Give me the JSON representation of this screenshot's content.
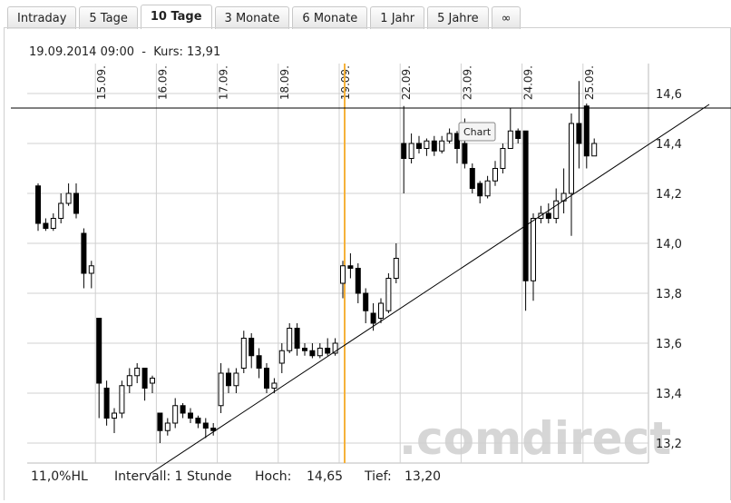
{
  "tabs": [
    "Intraday",
    "5 Tage",
    "10 Tage",
    "3 Monate",
    "6 Monate",
    "1 Jahr",
    "5 Jahre",
    "∞"
  ],
  "active_tab": 2,
  "info": "19.09.2014 09:00  -  Kurs: 13,91",
  "footer": [
    "11,0%HL",
    "Intervall: 1 Stunde",
    "Hoch:",
    "14,65",
    "Tief:",
    "13,20"
  ],
  "tooltip": "Chart",
  "watermark": ".comdirect",
  "chart_data": {
    "type": "candlestick",
    "categories": [
      null,
      null,
      null,
      null,
      null,
      null,
      null,
      null,
      "15.09.",
      null,
      null,
      null,
      null,
      null,
      null,
      null,
      "16.09.",
      null,
      null,
      null,
      null,
      null,
      null,
      null,
      "17.09.",
      null,
      null,
      null,
      null,
      null,
      null,
      null,
      "18.09.",
      null,
      null,
      null,
      null,
      null,
      null,
      null,
      "19.09.",
      null,
      null,
      null,
      null,
      null,
      null,
      null,
      "22.09.",
      null,
      null,
      null,
      null,
      null,
      null,
      null,
      "23.09.",
      null,
      null,
      null,
      null,
      null,
      null,
      null,
      "24.09.",
      null,
      null,
      null,
      null,
      null,
      null,
      null,
      "25.09.",
      null
    ],
    "open": [
      14.23,
      14.08,
      14.06,
      14.1,
      14.16,
      14.2,
      14.04,
      13.88,
      13.7,
      13.42,
      13.3,
      13.32,
      13.43,
      13.47,
      13.5,
      13.44,
      13.32,
      13.25,
      13.28,
      13.35,
      13.32,
      13.3,
      13.28,
      13.26,
      13.35,
      13.48,
      13.43,
      13.5,
      13.62,
      13.55,
      13.5,
      13.42,
      13.52,
      13.57,
      13.66,
      13.58,
      13.57,
      13.55,
      13.58,
      13.56,
      13.84,
      13.91,
      13.9,
      13.8,
      13.72,
      13.7,
      13.73,
      13.86,
      14.4,
      14.34,
      14.4,
      14.38,
      14.41,
      14.37,
      14.41,
      14.44,
      14.4,
      14.3,
      14.24,
      14.19,
      14.25,
      14.3,
      14.38,
      14.45,
      14.45,
      13.85,
      14.1,
      14.12,
      14.1,
      14.17,
      14.2,
      14.48,
      14.55,
      14.35
    ],
    "high": [
      14.24,
      14.1,
      14.12,
      14.2,
      14.24,
      14.24,
      14.06,
      13.93,
      13.7,
      13.45,
      13.34,
      13.45,
      13.5,
      13.52,
      13.5,
      13.47,
      13.32,
      13.3,
      13.38,
      13.36,
      13.34,
      13.31,
      13.3,
      13.28,
      13.52,
      13.5,
      13.5,
      13.65,
      13.64,
      13.58,
      13.52,
      13.46,
      13.6,
      13.68,
      13.68,
      13.6,
      13.6,
      13.6,
      13.62,
      13.62,
      13.93,
      13.96,
      13.92,
      13.82,
      13.76,
      13.78,
      13.88,
      14.0,
      14.55,
      14.44,
      14.43,
      14.42,
      14.43,
      14.43,
      14.46,
      14.45,
      14.5,
      14.32,
      14.25,
      14.27,
      14.33,
      14.4,
      14.54,
      14.46,
      14.45,
      14.12,
      14.15,
      14.16,
      14.22,
      14.3,
      14.52,
      14.65,
      14.56,
      14.42
    ],
    "low": [
      14.05,
      14.05,
      14.05,
      14.08,
      14.15,
      14.1,
      13.82,
      13.82,
      13.3,
      13.27,
      13.24,
      13.3,
      13.4,
      13.44,
      13.37,
      13.4,
      13.2,
      13.23,
      13.26,
      13.3,
      13.28,
      13.26,
      13.22,
      13.23,
      13.32,
      13.4,
      13.4,
      13.48,
      13.5,
      13.46,
      13.4,
      13.4,
      13.48,
      13.56,
      13.55,
      13.55,
      13.54,
      13.54,
      13.55,
      13.55,
      13.78,
      13.86,
      13.76,
      13.68,
      13.65,
      13.68,
      13.72,
      13.84,
      14.2,
      14.32,
      14.36,
      14.35,
      14.35,
      14.36,
      14.4,
      14.32,
      14.3,
      14.2,
      14.16,
      14.18,
      14.23,
      14.28,
      14.38,
      14.4,
      13.73,
      13.77,
      14.08,
      14.08,
      14.08,
      14.12,
      14.03,
      14.3,
      14.3,
      14.35
    ],
    "close": [
      14.08,
      14.06,
      14.1,
      14.16,
      14.2,
      14.12,
      13.88,
      13.91,
      13.44,
      13.3,
      13.32,
      13.43,
      13.47,
      13.5,
      13.42,
      13.46,
      13.25,
      13.28,
      13.35,
      13.32,
      13.3,
      13.28,
      13.26,
      13.25,
      13.48,
      13.43,
      13.48,
      13.62,
      13.55,
      13.5,
      13.42,
      13.44,
      13.57,
      13.66,
      13.58,
      13.57,
      13.55,
      13.58,
      13.56,
      13.6,
      13.91,
      13.9,
      13.8,
      13.73,
      13.68,
      13.76,
      13.86,
      13.94,
      14.34,
      14.4,
      14.38,
      14.41,
      14.37,
      14.41,
      14.44,
      14.38,
      14.32,
      14.22,
      14.19,
      14.25,
      14.3,
      14.38,
      14.45,
      14.42,
      13.85,
      14.1,
      14.12,
      14.1,
      14.17,
      14.2,
      14.48,
      14.4,
      14.35,
      14.4
    ],
    "ylim": [
      13.12,
      14.72
    ],
    "yticks": [
      {
        "value": 13.2,
        "label": "13,2"
      },
      {
        "value": 13.4,
        "label": "13,4"
      },
      {
        "value": 13.6,
        "label": "13,6"
      },
      {
        "value": 13.8,
        "label": "13,8"
      },
      {
        "value": 14.0,
        "label": "14,0"
      },
      {
        "value": 14.2,
        "label": "14,2"
      },
      {
        "value": 14.4,
        "label": "14,4"
      },
      {
        "value": 14.6,
        "label": "14,6"
      }
    ],
    "grid": true,
    "color": "#000000"
  }
}
